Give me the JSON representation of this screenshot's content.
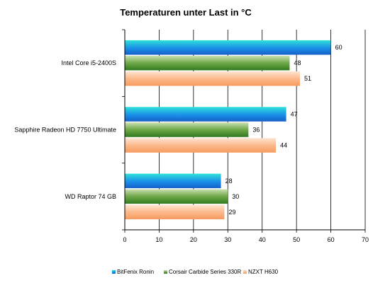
{
  "chart_data": {
    "type": "bar",
    "orientation": "horizontal",
    "title": "Temperaturen unter Last in °C",
    "xlabel": "",
    "ylabel": "",
    "categories": [
      "Intel Core i5-2400S",
      "Sapphire Radeon HD 7750 Ultimate",
      "WD Raptor 74 GB"
    ],
    "series": [
      {
        "name": "BitFenix Ronin",
        "values": [
          60,
          47,
          28
        ],
        "color": "#1f7fe0"
      },
      {
        "name": "Corsair Carbide Series 330R",
        "values": [
          48,
          36,
          30
        ],
        "color": "#4f8e2e"
      },
      {
        "name": "NZXT H630",
        "values": [
          51,
          44,
          29
        ],
        "color": "#fcb98c"
      }
    ],
    "xlim": [
      0,
      70
    ],
    "xticks": [
      0,
      10,
      20,
      30,
      40,
      50,
      60,
      70
    ],
    "grid": true,
    "legend_position": "bottom"
  }
}
